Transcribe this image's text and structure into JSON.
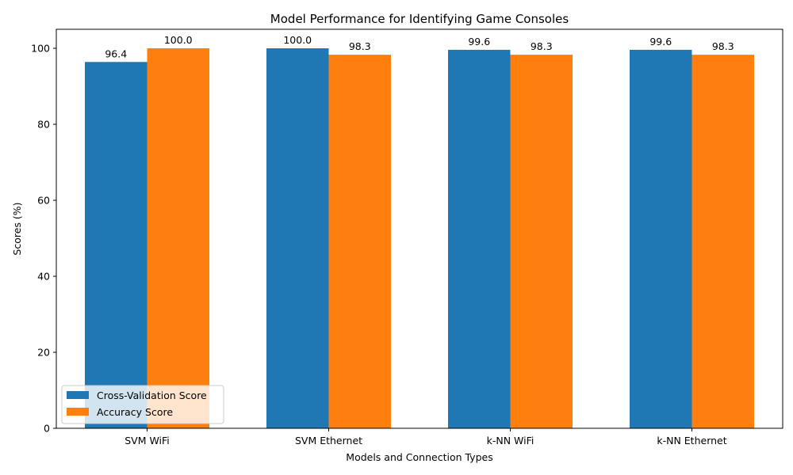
{
  "chart_data": {
    "type": "bar",
    "title": "Model Performance for Identifying Game Consoles",
    "xlabel": "Models and Connection Types",
    "ylabel": "Scores (%)",
    "categories": [
      "SVM WiFi",
      "SVM Ethernet",
      "k-NN WiFi",
      "k-NN Ethernet"
    ],
    "series": [
      {
        "name": "Cross-Validation Score",
        "color": "#1f77b4",
        "values": [
          96.4,
          100.0,
          99.6,
          99.6
        ]
      },
      {
        "name": "Accuracy Score",
        "color": "#ff7f0e",
        "values": [
          100.0,
          98.3,
          98.3,
          98.3
        ]
      }
    ],
    "ylim": [
      0,
      105
    ],
    "yticks": [
      0,
      20,
      40,
      60,
      80,
      100
    ],
    "grid": false,
    "legend_position": "lower-left"
  }
}
